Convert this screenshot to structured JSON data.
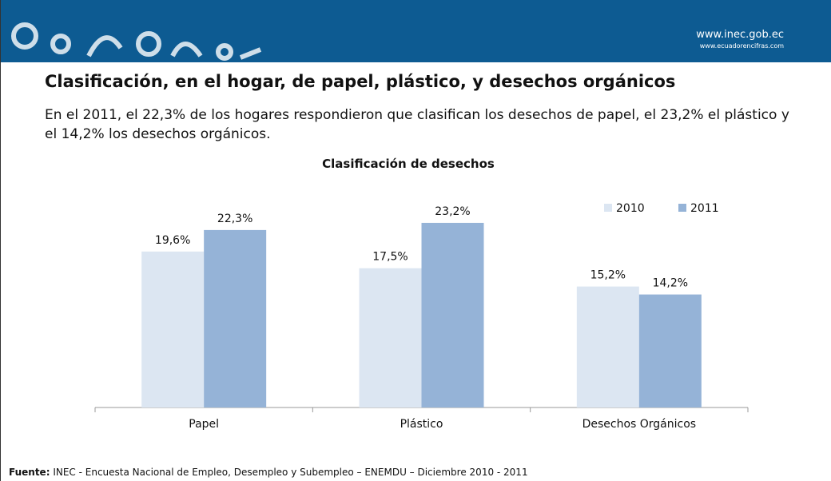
{
  "header": {
    "url": "www.inec.gob.ec",
    "url_small": "www.ecuadorencifras.com"
  },
  "slide_title": "Clasificación, en el hogar, de papel, plástico, y desechos orgánicos",
  "text": "En el 2011, el 22,3% de los hogares respondieron que clasifican los desechos de papel, el 23,2% el plástico y el 14,2% los desechos orgánicos.",
  "chart_data": {
    "type": "bar",
    "title": "Clasificación de desechos",
    "categories": [
      "Papel",
      "Plástico",
      "Desechos Orgánicos"
    ],
    "series": [
      {
        "name": "2010",
        "color": "#dce6f2",
        "values": [
          19.6,
          17.5,
          15.2
        ],
        "value_labels": [
          "19,6%",
          "17,5%",
          "15,2%"
        ]
      },
      {
        "name": "2011",
        "color": "#95b3d7",
        "values": [
          22.3,
          23.2,
          14.2
        ],
        "value_labels": [
          "22,3%",
          "23,2%",
          "14,2%"
        ]
      }
    ],
    "legend": "top-right"
  },
  "source": {
    "label": "Fuente:",
    "text": "INEC  -  Encuesta Nacional  de Empleo, Desempleo y Subempleo – ENEMDU – Diciembre 2010 - 2011"
  }
}
